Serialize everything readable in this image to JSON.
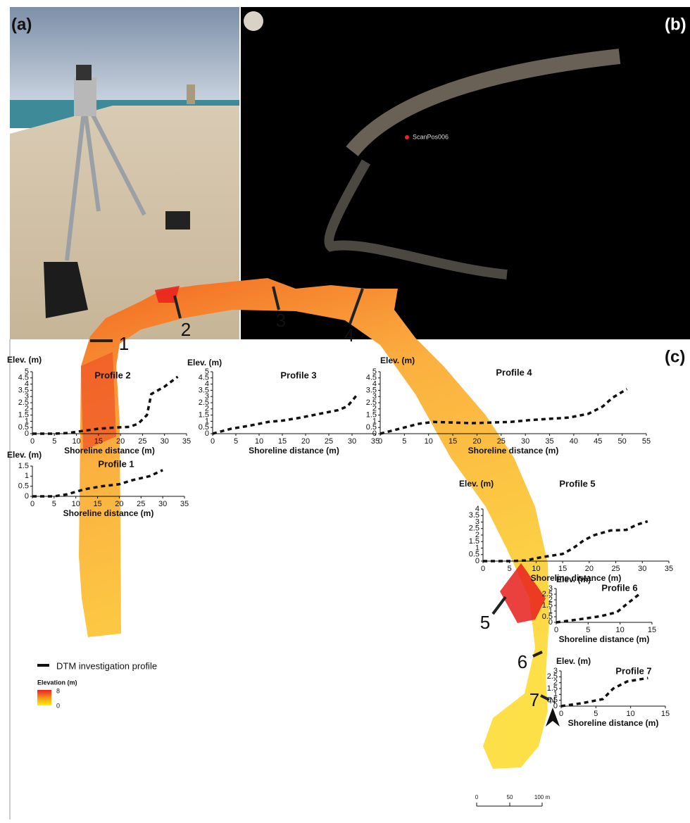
{
  "panels": {
    "a": "(a)",
    "b": "(b)",
    "c": "(c)"
  },
  "scan_label": "ScanPos006",
  "chart_data": [
    {
      "type": "line",
      "title": "Profile 1",
      "y_label": "Elev. (m)",
      "x_label": "Shoreline distance (m)",
      "color": "#111111",
      "x": [
        0,
        5,
        8,
        12,
        16,
        20,
        23,
        27,
        30
      ],
      "values": [
        0,
        0,
        0.1,
        0.35,
        0.5,
        0.6,
        0.8,
        1,
        1.3
      ],
      "xlim": [
        0,
        35
      ],
      "xticks": [
        0,
        5,
        10,
        15,
        20,
        25,
        30,
        35
      ],
      "ylim": [
        0,
        1.5
      ],
      "yticks": [
        0,
        0.5,
        1,
        1.5
      ]
    },
    {
      "type": "line",
      "title": "Profile 2",
      "y_label": "Elev. (m)",
      "x_label": "Shoreline distance (m)",
      "color": "#111111",
      "x": [
        0,
        5,
        8,
        11,
        15,
        19,
        22,
        24,
        26,
        27,
        30,
        33
      ],
      "values": [
        0,
        0,
        0.05,
        0.2,
        0.4,
        0.5,
        0.55,
        0.8,
        1.5,
        3.2,
        3.8,
        4.6
      ],
      "xlim": [
        0,
        35
      ],
      "xticks": [
        0,
        5,
        10,
        15,
        20,
        25,
        30,
        35
      ],
      "ylim": [
        0,
        5
      ],
      "yticks": [
        0,
        0.5,
        1,
        1.5,
        2,
        2.5,
        3,
        3.5,
        4,
        4.5,
        5
      ]
    },
    {
      "type": "line",
      "title": "Profile 3",
      "y_label": "Elev. (m)",
      "x_label": "Shoreline distance (m)",
      "color": "#111111",
      "x": [
        0,
        4,
        8,
        12,
        15,
        19,
        23,
        27,
        29,
        31
      ],
      "values": [
        0,
        0.4,
        0.65,
        0.95,
        1.05,
        1.3,
        1.6,
        1.9,
        2.2,
        3.1
      ],
      "xlim": [
        0,
        35
      ],
      "xticks": [
        0,
        5,
        10,
        15,
        20,
        25,
        30,
        35
      ],
      "ylim": [
        0,
        5
      ],
      "yticks": [
        0,
        0.5,
        1,
        1.5,
        2,
        2.5,
        3,
        3.5,
        4,
        4.5,
        5
      ]
    },
    {
      "type": "line",
      "title": "Profile 4",
      "y_label": "Elev. (m)",
      "x_label": "Shoreline distance (m)",
      "color": "#111111",
      "x": [
        0,
        4,
        8,
        11,
        15,
        19,
        23,
        27,
        31,
        35,
        39,
        43,
        46,
        48,
        51
      ],
      "values": [
        0,
        0.4,
        0.8,
        0.95,
        0.9,
        0.85,
        0.9,
        0.95,
        1.1,
        1.2,
        1.3,
        1.6,
        2.2,
        2.9,
        3.6
      ],
      "xlim": [
        0,
        55
      ],
      "xticks": [
        0,
        5,
        10,
        15,
        20,
        25,
        30,
        35,
        40,
        45,
        50,
        55
      ],
      "ylim": [
        0,
        5
      ],
      "yticks": [
        0,
        0.5,
        1,
        1.5,
        2,
        2.5,
        3,
        3.5,
        4,
        4.5,
        5
      ]
    },
    {
      "type": "line",
      "title": "Profile 5",
      "y_label": "Elev. (m)",
      "x_label": "Shoreline distance (m)",
      "color": "#111111",
      "x": [
        0,
        5,
        8,
        11,
        15,
        17,
        19,
        21,
        24,
        27,
        29,
        31
      ],
      "values": [
        0,
        0,
        0.05,
        0.3,
        0.55,
        1,
        1.6,
        2,
        2.35,
        2.4,
        2.8,
        3.05
      ],
      "xlim": [
        0,
        35
      ],
      "xticks": [
        0,
        5,
        10,
        15,
        20,
        25,
        30,
        35
      ],
      "ylim": [
        0,
        4
      ],
      "yticks": [
        0,
        0.5,
        1,
        1.5,
        2,
        2.5,
        3,
        3.5,
        4
      ]
    },
    {
      "type": "line",
      "title": "Profile 6",
      "y_label": "Elev. (m)",
      "x_label": "Shoreline distance (m)",
      "color": "#111111",
      "x": [
        0,
        4,
        7,
        9.5,
        11,
        13
      ],
      "values": [
        0,
        0.3,
        0.55,
        0.9,
        1.6,
        2.5
      ],
      "xlim": [
        0,
        15
      ],
      "xticks": [
        0,
        5,
        10,
        15
      ],
      "ylim": [
        0,
        3
      ],
      "yticks": [
        0,
        0.5,
        1,
        1.5,
        2,
        2.5,
        3
      ]
    },
    {
      "type": "line",
      "title": "Profile 7",
      "y_label": "Elev. (m)",
      "x_label": "Shoreline distance (m)",
      "color": "#111111",
      "x": [
        0,
        3,
        6,
        7.5,
        9.5,
        12.5
      ],
      "values": [
        0,
        0.25,
        0.6,
        1.5,
        2.1,
        2.4
      ],
      "xlim": [
        0,
        15
      ],
      "xticks": [
        0,
        5,
        10,
        15
      ],
      "ylim": [
        0,
        3
      ],
      "yticks": [
        0,
        0.5,
        1,
        1.5,
        2,
        2.5,
        3
      ]
    }
  ],
  "map": {
    "profiles": [
      "1",
      "2",
      "3",
      "4",
      "5",
      "6",
      "7"
    ],
    "legend_profile": "DTM investigation profile",
    "elevation_title": "Elevation (m)",
    "elevation_max": 8,
    "elevation_min": 0,
    "scale": [
      "0",
      "50",
      "100 m"
    ],
    "north": "N"
  }
}
